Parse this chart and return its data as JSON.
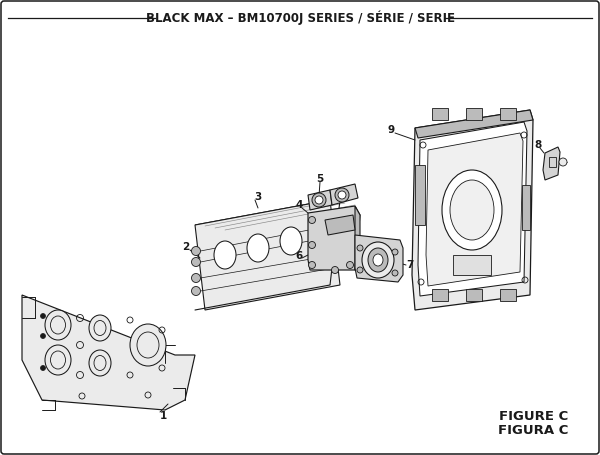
{
  "title": "BLACK MAX – BM10700J SERIES / SÉRIE / SERIE",
  "title_fontsize": 8.5,
  "figure_label": "FIGURE C",
  "figure_sublabel": "FIGURA C",
  "bg_color": "#ffffff",
  "border_color": "#1a1a1a",
  "line_color": "#1a1a1a",
  "gray_fill": "#d4d4d4",
  "light_gray": "#ebebeb",
  "mid_gray": "#bbbbbb"
}
